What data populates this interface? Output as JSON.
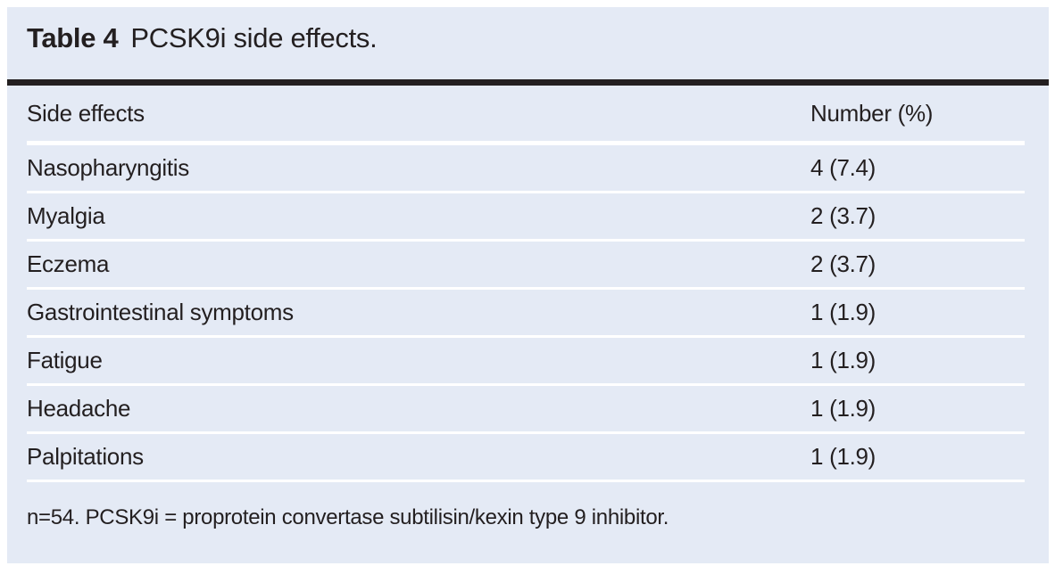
{
  "colors": {
    "panel_bg": "#e4eaf5",
    "heavy_rule": "#231f20",
    "text": "#231f20",
    "row_separator": "#ffffff"
  },
  "table": {
    "label": "Table 4",
    "caption": "PCSK9i side effects.",
    "header": {
      "side_effects": "Side effects",
      "number": "Number (%)"
    },
    "rows": [
      {
        "effect": "Nasopharyngitis",
        "value": "4 (7.4)"
      },
      {
        "effect": "Myalgia",
        "value": "2 (3.7)"
      },
      {
        "effect": "Eczema",
        "value": "2 (3.7)"
      },
      {
        "effect": "Gastrointestinal symptoms",
        "value": "1 (1.9)"
      },
      {
        "effect": "Fatigue",
        "value": "1 (1.9)"
      },
      {
        "effect": "Headache",
        "value": "1 (1.9)"
      },
      {
        "effect": "Palpitations",
        "value": "1 (1.9)"
      }
    ],
    "footnote": "n=54. PCSK9i = proprotein convertase subtilisin/kexin type 9 inhibitor."
  },
  "chart_data": {
    "type": "table",
    "title": "Table 4 PCSK9i side effects.",
    "columns": [
      "Side effects",
      "Number (%)"
    ],
    "rows": [
      [
        "Nasopharyngitis",
        "4 (7.4)"
      ],
      [
        "Myalgia",
        "2 (3.7)"
      ],
      [
        "Eczema",
        "2 (3.7)"
      ],
      [
        "Gastrointestinal symptoms",
        "1 (1.9)"
      ],
      [
        "Fatigue",
        "1 (1.9)"
      ],
      [
        "Headache",
        "1 (1.9)"
      ],
      [
        "Palpitations",
        "1 (1.9)"
      ]
    ],
    "footnote": "n=54. PCSK9i = proprotein convertase subtilisin/kexin type 9 inhibitor."
  }
}
